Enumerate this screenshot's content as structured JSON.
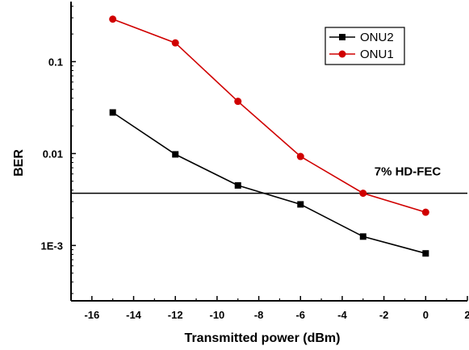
{
  "chart_data": {
    "type": "line",
    "title": "",
    "xlabel": "Transmitted power (dBm)",
    "ylabel": "BER",
    "xlim": [
      -17,
      2
    ],
    "ylim": [
      0.00025,
      0.45
    ],
    "yscale": "log",
    "x_ticks": [
      -16,
      -14,
      -12,
      -10,
      -8,
      -6,
      -4,
      -2,
      0,
      2
    ],
    "x_tick_labels": [
      "-16",
      "-14",
      "-12",
      "-10",
      "-8",
      "-6",
      "-4",
      "-2",
      "0",
      "2"
    ],
    "y_ticks": [
      0.001,
      0.01,
      0.1
    ],
    "y_tick_labels": [
      "1E-3",
      "0.01",
      "0.1"
    ],
    "legend_position": "top-right",
    "series": [
      {
        "name": "ONU2",
        "color": "#000000",
        "marker": "square",
        "x": [
          -15,
          -12,
          -9,
          -6,
          -3,
          0
        ],
        "y": [
          0.028,
          0.0098,
          0.0045,
          0.0028,
          0.00125,
          0.00082
        ]
      },
      {
        "name": "ONU1",
        "color": "#d00000",
        "marker": "circle",
        "x": [
          -15,
          -12,
          -9,
          -6,
          -3,
          0
        ],
        "y": [
          0.29,
          0.16,
          0.037,
          0.0093,
          0.0037,
          0.0023
        ]
      }
    ],
    "annotations": [
      {
        "text": "7% HD-FEC",
        "type": "horizontal-line",
        "y": 0.0037,
        "color": "#000000"
      }
    ]
  }
}
